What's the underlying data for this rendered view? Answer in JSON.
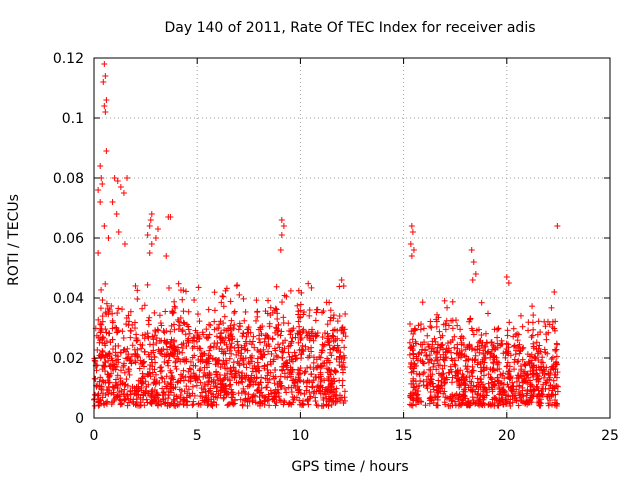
{
  "chart_data": {
    "type": "scatter",
    "title": "Day 140 of 2011, Rate Of TEC Index for receiver adis",
    "xlabel": "GPS time / hours",
    "ylabel": "ROTI / TECUs",
    "xlim": [
      0,
      25
    ],
    "ylim": [
      0,
      0.12
    ],
    "xticks": [
      0,
      5,
      10,
      15,
      20,
      25
    ],
    "xtick_labels": [
      "0",
      "5",
      "10",
      "15",
      "20",
      "25"
    ],
    "yticks": [
      0,
      0.02,
      0.04,
      0.06,
      0.08,
      0.1,
      0.12
    ],
    "ytick_labels": [
      "0",
      "0.02",
      "0.04",
      "0.06",
      "0.08",
      "0.1",
      "0.12"
    ],
    "grid": true,
    "marker": "+",
    "color": "#ff0000",
    "series": [
      {
        "name": "ROTI",
        "segments": [
          {
            "x_start": 0.0,
            "x_end": 12.2,
            "baseline_min": 0.004,
            "baseline_max": 0.03,
            "typical_peak": 0.045
          },
          {
            "x_start": 15.3,
            "x_end": 22.5,
            "baseline_min": 0.004,
            "baseline_max": 0.025,
            "typical_peak": 0.04
          }
        ],
        "notable_points": [
          [
            0.5,
            0.118
          ],
          [
            0.55,
            0.114
          ],
          [
            0.45,
            0.112
          ],
          [
            0.6,
            0.106
          ],
          [
            0.5,
            0.104
          ],
          [
            0.55,
            0.102
          ],
          [
            0.6,
            0.089
          ],
          [
            0.3,
            0.084
          ],
          [
            0.35,
            0.08
          ],
          [
            0.4,
            0.078
          ],
          [
            0.2,
            0.076
          ],
          [
            0.3,
            0.072
          ],
          [
            1.0,
            0.08
          ],
          [
            1.15,
            0.079
          ],
          [
            1.3,
            0.077
          ],
          [
            1.6,
            0.08
          ],
          [
            1.45,
            0.075
          ],
          [
            0.9,
            0.072
          ],
          [
            1.1,
            0.068
          ],
          [
            1.2,
            0.062
          ],
          [
            1.5,
            0.058
          ],
          [
            0.5,
            0.064
          ],
          [
            0.7,
            0.06
          ],
          [
            0.2,
            0.055
          ],
          [
            2.8,
            0.068
          ],
          [
            2.75,
            0.066
          ],
          [
            2.7,
            0.064
          ],
          [
            3.6,
            0.067
          ],
          [
            3.7,
            0.067
          ],
          [
            3.1,
            0.063
          ],
          [
            2.6,
            0.061
          ],
          [
            2.8,
            0.058
          ],
          [
            3.0,
            0.06
          ],
          [
            2.7,
            0.055
          ],
          [
            3.5,
            0.054
          ],
          [
            9.1,
            0.066
          ],
          [
            9.2,
            0.064
          ],
          [
            9.1,
            0.061
          ],
          [
            9.05,
            0.056
          ],
          [
            15.4,
            0.064
          ],
          [
            15.45,
            0.062
          ],
          [
            15.35,
            0.058
          ],
          [
            15.5,
            0.056
          ],
          [
            15.4,
            0.054
          ],
          [
            18.3,
            0.056
          ],
          [
            18.4,
            0.052
          ],
          [
            18.5,
            0.048
          ],
          [
            18.35,
            0.046
          ],
          [
            20.0,
            0.047
          ],
          [
            20.1,
            0.045
          ],
          [
            22.45,
            0.064
          ],
          [
            22.3,
            0.042
          ],
          [
            12.0,
            0.046
          ],
          [
            12.1,
            0.044
          ]
        ]
      }
    ]
  }
}
